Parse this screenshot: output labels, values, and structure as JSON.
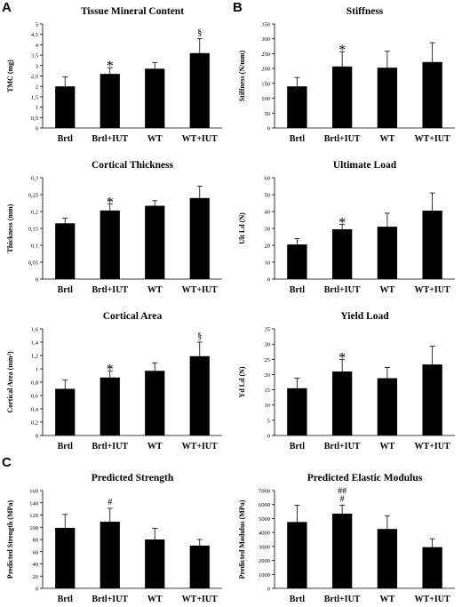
{
  "panel_letters": [
    "A",
    "B",
    "C"
  ],
  "chart_data": [
    {
      "type": "bar",
      "title": "Tissue Mineral Content",
      "ylabel": "TMC (mg)",
      "categories": [
        "Brtl",
        "Brtl+IUT",
        "WT",
        "WT+IUT"
      ],
      "values": [
        2.0,
        2.6,
        2.85,
        3.6
      ],
      "errors": [
        0.45,
        0.3,
        0.3,
        0.7
      ],
      "annotations": [
        "",
        "*",
        "",
        "§"
      ],
      "ylim": [
        0,
        5
      ],
      "yticks": [
        0,
        0.5,
        1,
        1.5,
        2,
        2.5,
        3,
        3.5,
        4,
        4.5,
        5
      ],
      "ytick_labels": [
        "0",
        "0,5",
        "1",
        "1,5",
        "2",
        "2,5",
        "3",
        "3,5",
        "4",
        "4,5",
        "5"
      ]
    },
    {
      "type": "bar",
      "title": "Stiffness",
      "ylabel": "Stiffness (N/mm)",
      "categories": [
        "Brtl",
        "Brtl+IUT",
        "WT",
        "WT+IUT"
      ],
      "values": [
        140,
        207,
        203,
        222
      ],
      "errors": [
        30,
        50,
        55,
        65
      ],
      "annotations": [
        "",
        "*",
        "",
        ""
      ],
      "ylim": [
        0,
        350
      ],
      "yticks": [
        0,
        50,
        100,
        150,
        200,
        250,
        300,
        350
      ],
      "ytick_labels": [
        "0",
        "50",
        "100",
        "150",
        "200",
        "250",
        "300",
        "350"
      ]
    },
    {
      "type": "bar",
      "title": "Cortical Thickness",
      "ylabel": "Thickness (mm)",
      "categories": [
        "Brtl",
        "Brtl+IUT",
        "WT",
        "WT+IUT"
      ],
      "values": [
        0.165,
        0.203,
        0.217,
        0.24
      ],
      "errors": [
        0.015,
        0.02,
        0.015,
        0.035
      ],
      "annotations": [
        "",
        "*",
        "",
        ""
      ],
      "ylim": [
        0,
        0.3
      ],
      "yticks": [
        0,
        0.05,
        0.1,
        0.15,
        0.2,
        0.25,
        0.3
      ],
      "ytick_labels": [
        "0",
        "0,05",
        "0,1",
        "0,15",
        "0,2",
        "0,25",
        "0,3"
      ]
    },
    {
      "type": "bar",
      "title": "Ultimate Load",
      "ylabel": "Ult Ld (N)",
      "categories": [
        "Brtl",
        "Brtl+IUT",
        "WT",
        "WT+IUT"
      ],
      "values": [
        20.5,
        29.5,
        31,
        40.5
      ],
      "errors": [
        3.5,
        3,
        8,
        10.5
      ],
      "annotations": [
        "",
        "*",
        "",
        ""
      ],
      "ylim": [
        0,
        60
      ],
      "yticks": [
        0,
        10,
        20,
        30,
        40,
        50,
        60
      ],
      "ytick_labels": [
        "0",
        "10",
        "20",
        "30",
        "40",
        "50",
        "60"
      ]
    },
    {
      "type": "bar",
      "title": "Cortical Area",
      "ylabel": "Cortical Area (mm²)",
      "categories": [
        "Brtl",
        "Brtl+IUT",
        "WT",
        "WT+IUT"
      ],
      "values": [
        0.7,
        0.87,
        0.97,
        1.19
      ],
      "errors": [
        0.13,
        0.1,
        0.12,
        0.21
      ],
      "annotations": [
        "",
        "*",
        "",
        "§"
      ],
      "ylim": [
        0,
        1.6
      ],
      "yticks": [
        0,
        0.2,
        0.4,
        0.6,
        0.8,
        1,
        1.2,
        1.4,
        1.6
      ],
      "ytick_labels": [
        "0",
        "0,2",
        "0,4",
        "0,6",
        "0,8",
        "1",
        "1,2",
        "1,4",
        "1,6"
      ]
    },
    {
      "type": "bar",
      "title": "Yield Load",
      "ylabel": "Yd Ld (N)",
      "categories": [
        "Brtl",
        "Brtl+IUT",
        "WT",
        "WT+IUT"
      ],
      "values": [
        15.5,
        21,
        18.8,
        23.3
      ],
      "errors": [
        3.3,
        4,
        3.5,
        6
      ],
      "annotations": [
        "",
        "*",
        "",
        ""
      ],
      "ylim": [
        0,
        35
      ],
      "yticks": [
        0,
        5,
        10,
        15,
        20,
        25,
        30,
        35
      ],
      "ytick_labels": [
        "0",
        "5",
        "10",
        "15",
        "20",
        "25",
        "30",
        "35"
      ]
    },
    {
      "type": "bar",
      "title": "Predicted Strength",
      "ylabel": "Predicted Strength (MPa)",
      "categories": [
        "Brtl",
        "Brtl+IUT",
        "WT",
        "WT+IUT"
      ],
      "values": [
        99,
        109,
        80,
        70
      ],
      "errors": [
        22,
        22,
        18,
        10
      ],
      "annotations": [
        "",
        "#",
        "",
        ""
      ],
      "ylim": [
        0,
        160
      ],
      "yticks": [
        0,
        20,
        40,
        60,
        80,
        100,
        120,
        140,
        160
      ],
      "ytick_labels": [
        "0",
        "20",
        "40",
        "60",
        "80",
        "100",
        "120",
        "140",
        "160"
      ]
    },
    {
      "type": "bar",
      "title": "Predicted Elastic Modulus",
      "ylabel": "Predicted Modulus (MPa)",
      "categories": [
        "Brtl",
        "Brtl+IUT",
        "WT",
        "WT+IUT"
      ],
      "values": [
        4750,
        5350,
        4250,
        2950
      ],
      "errors": [
        1200,
        600,
        950,
        600
      ],
      "annotations": [
        "",
        "##\n#",
        "",
        ""
      ],
      "ylim": [
        0,
        7000
      ],
      "yticks": [
        0,
        1000,
        2000,
        3000,
        4000,
        5000,
        6000,
        7000
      ],
      "ytick_labels": [
        "0",
        "1000",
        "2000",
        "3000",
        "4000",
        "5000",
        "6000",
        "7000"
      ]
    }
  ]
}
